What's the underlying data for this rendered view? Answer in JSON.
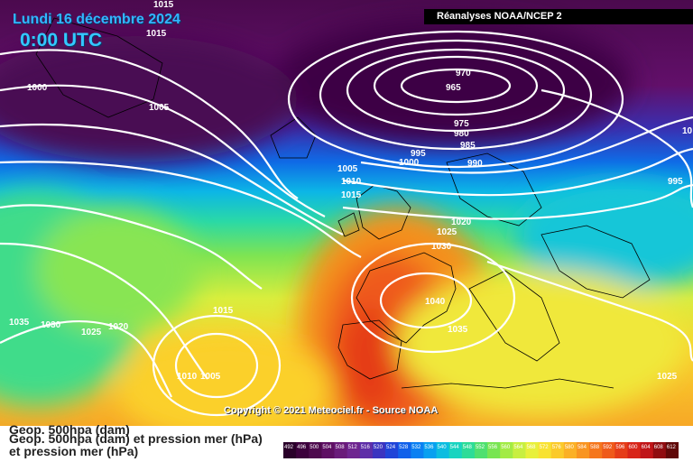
{
  "header": {
    "date": "Lundi 16 décembre 2024",
    "time": "0:00 UTC",
    "source": "Réanalyses NOAA/NCEP 2"
  },
  "footer": {
    "copyright": "Copyright © 2021 Meteociel.fr - Source NOAA",
    "legend_line_1": "Geop. 500hpa (dam)",
    "legend_line_2": "Geop. 500hpa (dam) et pression mer (hPa)",
    "legend_line_3": "et pression mer (hPa)"
  },
  "color_scale": {
    "labels": [
      "492",
      "496",
      "500",
      "504",
      "508",
      "512",
      "516",
      "520",
      "524",
      "528",
      "532",
      "536",
      "540",
      "544",
      "548",
      "552",
      "556",
      "560",
      "564",
      "568",
      "572",
      "576",
      "580",
      "584",
      "588",
      "592",
      "596",
      "600",
      "604",
      "608",
      "612"
    ],
    "colors": [
      "#2a002a",
      "#3d003d",
      "#4e0a4e",
      "#5e0f63",
      "#6a1b7a",
      "#6f2590",
      "#5e2ea8",
      "#3b34c0",
      "#1f44d8",
      "#1060ea",
      "#0a80f2",
      "#07a0f0",
      "#0bbde0",
      "#19d4c0",
      "#2ddc98",
      "#4fe070",
      "#78e552",
      "#a2eb45",
      "#c8ef40",
      "#e8f03a",
      "#f8e232",
      "#fbca2a",
      "#fbb025",
      "#f99420",
      "#f5761c",
      "#ef5a1a",
      "#e53c18",
      "#d82418",
      "#c01418",
      "#900c10",
      "#600808"
    ]
  },
  "isobar_labels": [
    "1015",
    "1015",
    "1000",
    "1005",
    "970",
    "965",
    "975",
    "980",
    "985",
    "990",
    "995",
    "1000",
    "1005",
    "1010",
    "1015",
    "1020",
    "1025",
    "1030",
    "1040",
    "1035",
    "1015",
    "1035",
    "1030",
    "1025",
    "1020",
    "1010",
    "1005",
    "995",
    "1025",
    "10"
  ]
}
